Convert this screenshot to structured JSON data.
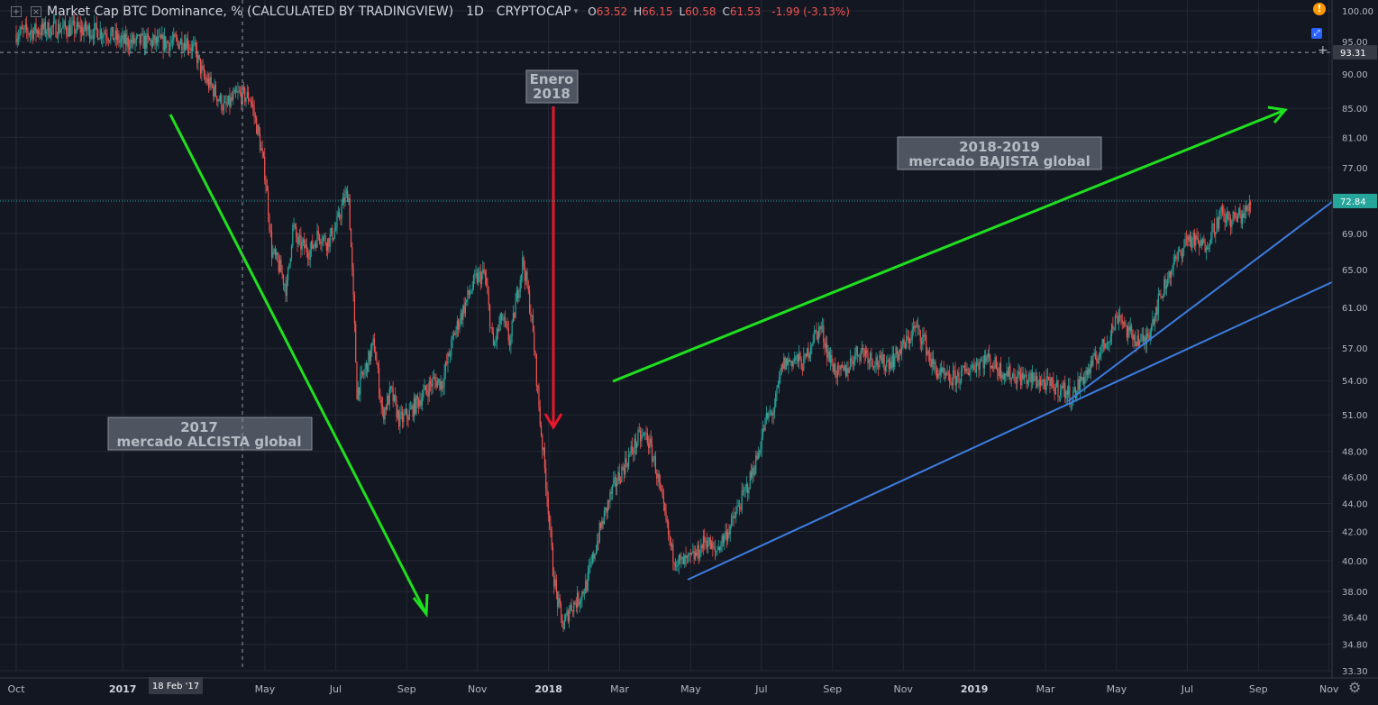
{
  "header": {
    "title": "Market Cap BTC Dominance, % (CALCULATED BY TRADINGVIEW)",
    "interval": "1D",
    "symbol": "CRYPTOCAP",
    "o_label": "O",
    "o_value": "63.52",
    "h_label": "H",
    "h_value": "66.15",
    "l_label": "L",
    "l_value": "60.58",
    "c_label": "C",
    "c_value": "61.53",
    "change": "-1.99 (-3.13%)"
  },
  "colors": {
    "background": "#131722",
    "grid": "#242833",
    "up": "#26a69a",
    "down": "#ef5350",
    "trend_green": "#1fe01f",
    "trend_blue": "#3d7de0",
    "arrow_red": "#e8182a",
    "price_label": "#26a69a",
    "crosshair_label": "#363a45"
  },
  "icons": {
    "collapse": "square-plus-icon",
    "hide": "eye-slash-icon",
    "warning": "exclamation-circle-icon",
    "scale": "scale-toggle-icon",
    "settings": "gear-icon",
    "add": "plus-icon"
  },
  "chart_data": {
    "type": "candlestick",
    "title": "Market Cap BTC Dominance, % (CALCULATED BY TRADINGVIEW)",
    "y_scale": "log",
    "ylim": [
      33.3,
      100
    ],
    "y_ticks": [
      "100.00",
      "95.00",
      "90.00",
      "85.00",
      "81.00",
      "77.00",
      "73.00",
      "69.00",
      "65.00",
      "61.00",
      "57.00",
      "54.00",
      "51.00",
      "48.00",
      "46.00",
      "44.00",
      "42.00",
      "40.00",
      "38.00",
      "36.40",
      "34.80",
      "33.30"
    ],
    "x_ticks": [
      {
        "label": "Oct",
        "t": 0.0,
        "bold": false
      },
      {
        "label": "2017",
        "t": 0.25,
        "bold": true
      },
      {
        "label": "May",
        "t": 0.584,
        "bold": false
      },
      {
        "label": "Jul",
        "t": 0.75,
        "bold": false
      },
      {
        "label": "Sep",
        "t": 0.917,
        "bold": false
      },
      {
        "label": "Nov",
        "t": 1.083,
        "bold": false
      },
      {
        "label": "2018",
        "t": 1.25,
        "bold": true
      },
      {
        "label": "Mar",
        "t": 1.417,
        "bold": false
      },
      {
        "label": "May",
        "t": 1.584,
        "bold": false
      },
      {
        "label": "Jul",
        "t": 1.75,
        "bold": false
      },
      {
        "label": "Sep",
        "t": 1.917,
        "bold": false
      },
      {
        "label": "Nov",
        "t": 2.083,
        "bold": false
      },
      {
        "label": "2019",
        "t": 2.25,
        "bold": true
      },
      {
        "label": "Mar",
        "t": 2.417,
        "bold": false
      },
      {
        "label": "May",
        "t": 2.584,
        "bold": false
      },
      {
        "label": "Jul",
        "t": 2.75,
        "bold": false
      },
      {
        "label": "Sep",
        "t": 2.917,
        "bold": false
      },
      {
        "label": "Nov",
        "t": 3.083,
        "bold": false
      }
    ],
    "series_path": [
      [
        0.0,
        96.3
      ],
      [
        0.05,
        96.8
      ],
      [
        0.1,
        97.2
      ],
      [
        0.16,
        96.9
      ],
      [
        0.21,
        96.5
      ],
      [
        0.25,
        94.9
      ],
      [
        0.3,
        95.0
      ],
      [
        0.35,
        94.8
      ],
      [
        0.4,
        95.1
      ],
      [
        0.42,
        93.5
      ],
      [
        0.44,
        89.5
      ],
      [
        0.46,
        88.0
      ],
      [
        0.49,
        85.0
      ],
      [
        0.52,
        87.0
      ],
      [
        0.55,
        86.5
      ],
      [
        0.57,
        81.0
      ],
      [
        0.585,
        76.0
      ],
      [
        0.6,
        67.0
      ],
      [
        0.62,
        65.0
      ],
      [
        0.635,
        62.8
      ],
      [
        0.65,
        70.0
      ],
      [
        0.66,
        68.0
      ],
      [
        0.675,
        67.5
      ],
      [
        0.69,
        67.0
      ],
      [
        0.71,
        69.0
      ],
      [
        0.73,
        68.0
      ],
      [
        0.75,
        69.5
      ],
      [
        0.77,
        73.0
      ],
      [
        0.78,
        74.0
      ],
      [
        0.8,
        53.0
      ],
      [
        0.82,
        55.0
      ],
      [
        0.84,
        57.5
      ],
      [
        0.86,
        51.0
      ],
      [
        0.88,
        53.0
      ],
      [
        0.9,
        50.5
      ],
      [
        0.92,
        51.0
      ],
      [
        0.95,
        52.5
      ],
      [
        0.98,
        54.0
      ],
      [
        1.0,
        53.8
      ],
      [
        1.03,
        58.5
      ],
      [
        1.06,
        62.0
      ],
      [
        1.08,
        64.0
      ],
      [
        1.1,
        64.5
      ],
      [
        1.12,
        57.0
      ],
      [
        1.14,
        60.0
      ],
      [
        1.16,
        57.5
      ],
      [
        1.175,
        62.0
      ],
      [
        1.19,
        66.0
      ],
      [
        1.21,
        60.0
      ],
      [
        1.23,
        50.5
      ],
      [
        1.24,
        47.0
      ],
      [
        1.25,
        43.5
      ],
      [
        1.26,
        39.5
      ],
      [
        1.27,
        37.5
      ],
      [
        1.285,
        35.8
      ],
      [
        1.3,
        37.0
      ],
      [
        1.32,
        37.5
      ],
      [
        1.34,
        38.5
      ],
      [
        1.37,
        42.0
      ],
      [
        1.4,
        45.0
      ],
      [
        1.43,
        47.0
      ],
      [
        1.46,
        49.0
      ],
      [
        1.48,
        49.3
      ],
      [
        1.5,
        47.0
      ],
      [
        1.52,
        43.5
      ],
      [
        1.54,
        40.5
      ],
      [
        1.56,
        39.8
      ],
      [
        1.58,
        40.0
      ],
      [
        1.6,
        40.5
      ],
      [
        1.62,
        41.5
      ],
      [
        1.64,
        40.5
      ],
      [
        1.66,
        41.5
      ],
      [
        1.68,
        42.5
      ],
      [
        1.7,
        44.0
      ],
      [
        1.72,
        45.5
      ],
      [
        1.74,
        47.5
      ],
      [
        1.76,
        50.5
      ],
      [
        1.78,
        51.5
      ],
      [
        1.8,
        55.5
      ],
      [
        1.83,
        56.0
      ],
      [
        1.85,
        55.5
      ],
      [
        1.87,
        58.0
      ],
      [
        1.89,
        59.0
      ],
      [
        1.91,
        56.0
      ],
      [
        1.93,
        54.5
      ],
      [
        1.95,
        55.0
      ],
      [
        1.97,
        56.5
      ],
      [
        1.99,
        56.8
      ],
      [
        2.01,
        56.0
      ],
      [
        2.03,
        55.5
      ],
      [
        2.06,
        56.0
      ],
      [
        2.09,
        57.5
      ],
      [
        2.11,
        59.0
      ],
      [
        2.13,
        58.0
      ],
      [
        2.15,
        55.5
      ],
      [
        2.17,
        54.5
      ],
      [
        2.19,
        54.0
      ],
      [
        2.22,
        54.5
      ],
      [
        2.25,
        55.5
      ],
      [
        2.28,
        56.0
      ],
      [
        2.31,
        55.0
      ],
      [
        2.34,
        54.5
      ],
      [
        2.37,
        54.2
      ],
      [
        2.4,
        54.0
      ],
      [
        2.43,
        53.5
      ],
      [
        2.46,
        53.2
      ],
      [
        2.48,
        52.5
      ],
      [
        2.5,
        54.0
      ],
      [
        2.52,
        55.0
      ],
      [
        2.55,
        57.0
      ],
      [
        2.57,
        58.5
      ],
      [
        2.59,
        60.5
      ],
      [
        2.61,
        58.5
      ],
      [
        2.63,
        58.0
      ],
      [
        2.65,
        57.5
      ],
      [
        2.67,
        60.0
      ],
      [
        2.69,
        62.5
      ],
      [
        2.71,
        64.8
      ],
      [
        2.73,
        66.5
      ],
      [
        2.75,
        68.5
      ],
      [
        2.77,
        68.0
      ],
      [
        2.79,
        67.5
      ],
      [
        2.81,
        69.5
      ],
      [
        2.83,
        71.2
      ],
      [
        2.85,
        70.5
      ],
      [
        2.87,
        71.0
      ],
      [
        2.89,
        71.5
      ],
      [
        2.9,
        72.84
      ]
    ],
    "current_value": "72.84",
    "crosshair": {
      "x_label": "18 Feb '17",
      "y_label": "93.31"
    },
    "annotations": [
      {
        "lines": [
          "Enero",
          "2018"
        ]
      },
      {
        "lines": [
          "2018-2019",
          "mercado BAJISTA global"
        ]
      },
      {
        "lines": [
          "2017",
          "mercado ALCISTA global"
        ]
      }
    ]
  }
}
